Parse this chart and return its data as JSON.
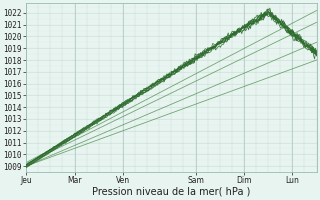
{
  "bg_color": "#e8f4f0",
  "plot_bg_color": "#e8f4f0",
  "grid_color": "#c8ddd8",
  "grid_color_minor": "#d8eae5",
  "line_color_squiggly": "#2d6b2d",
  "line_color_straight": "#4a8a4a",
  "x_labels": [
    "Jeu",
    "Mar",
    "Ven",
    "Sam",
    "Dim",
    "Lun"
  ],
  "xlabel": "Pression niveau de la mer( hPa )",
  "ylim": [
    1008.5,
    1022.8
  ],
  "xlim": [
    0,
    144
  ],
  "yticks": [
    1009,
    1010,
    1011,
    1012,
    1013,
    1014,
    1015,
    1016,
    1017,
    1018,
    1019,
    1020,
    1021,
    1022
  ],
  "label_fontsize": 6.5,
  "tick_fontsize": 5.5,
  "xlabel_fontsize": 7
}
